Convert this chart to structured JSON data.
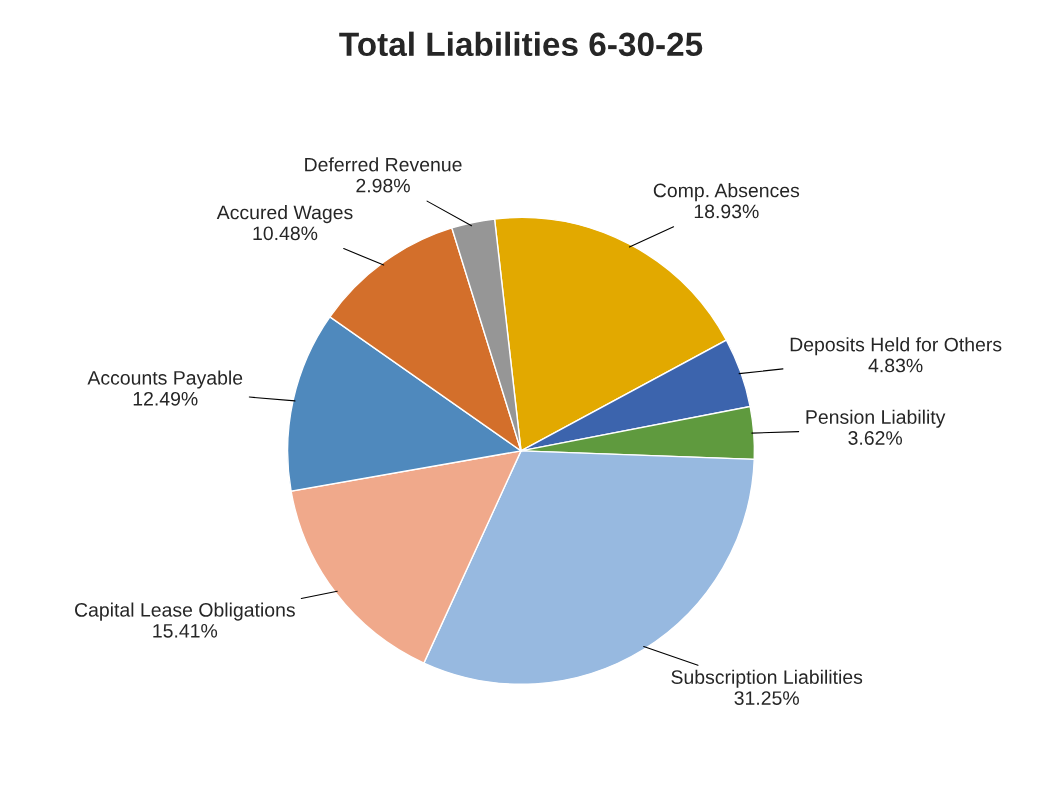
{
  "chart_data": {
    "type": "pie",
    "title": "Total Liabilities 6-30-25",
    "categories": [
      "Comp. Absences",
      "Deposits Held for Others",
      "Pension Liability",
      "Subscription Liabilities",
      "Capital Lease Obligations",
      "Accounts Payable",
      "Accured Wages",
      "Deferred Revenue"
    ],
    "values": [
      18.93,
      4.83,
      3.62,
      31.25,
      15.41,
      12.49,
      10.48,
      2.98
    ],
    "value_labels": [
      "18.93%",
      "4.83%",
      "3.62%",
      "31.25%",
      "15.41%",
      "12.49%",
      "10.48%",
      "2.98%"
    ],
    "colors": [
      "#e2a900",
      "#3c64ad",
      "#5f9a3e",
      "#97b9e0",
      "#f0a98b",
      "#4f89bd",
      "#d36f2b",
      "#969696"
    ],
    "legend": false
  }
}
